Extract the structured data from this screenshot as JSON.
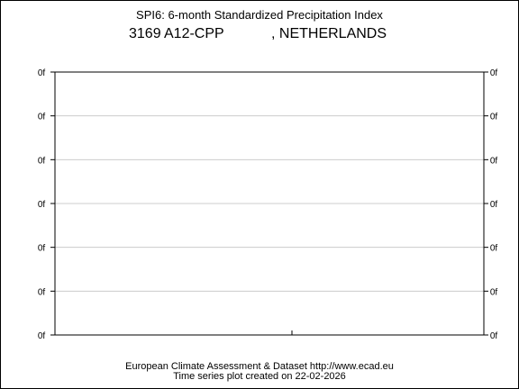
{
  "chart_data": {
    "type": "line",
    "title": "SPI6: 6-month Standardized Precipitation Index",
    "station": {
      "id": "3169",
      "name": "A12-CPP",
      "country": ", NETHERLANDS"
    },
    "y_ticks_left": [
      "0f",
      "0f",
      "0f",
      "0f",
      "0f",
      "0f",
      "0f"
    ],
    "y_ticks_right": [
      "0f",
      "0f",
      "0f",
      "0f",
      "0f",
      "0f",
      "0f"
    ],
    "grid": true,
    "series": [],
    "footer": {
      "line1": "European Climate Assessment & Dataset  http://www.ecad.eu",
      "line2": "Time series plot created on 22-02-2026"
    }
  }
}
